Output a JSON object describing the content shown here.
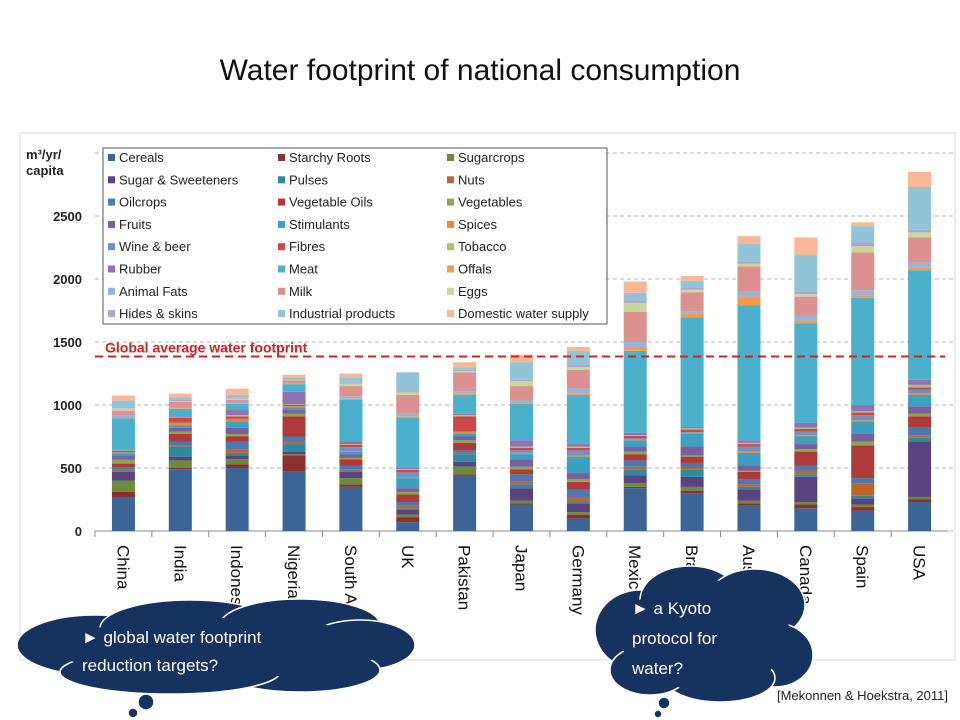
{
  "chart_data": {
    "type": "stacked_bar",
    "title": "Water footprint of national consumption",
    "y_label": "m³/yr/ capita",
    "categories": [
      "China",
      "India",
      "Indonesia",
      "Nigeria",
      "South Africa",
      "UK",
      "Pakistan",
      "Japan",
      "Germany",
      "Mexico",
      "Brazil",
      "Australia",
      "Canada",
      "Spain",
      "USA"
    ],
    "ylim": [
      0,
      3000
    ],
    "yticks": [
      0,
      500,
      1000,
      1500,
      2000,
      2500
    ],
    "grid": true,
    "reference_line": {
      "label": "Global average water footprint",
      "value": 1385,
      "color": "#d42020"
    },
    "series": [
      {
        "name": "Cereals",
        "color": "#3c6496",
        "values": [
          270,
          490,
          500,
          470,
          350,
          70,
          440,
          210,
          100,
          340,
          300,
          200,
          180,
          160,
          230
        ]
      },
      {
        "name": "Starchy Roots",
        "color": "#8b2f2f",
        "values": [
          40,
          10,
          30,
          130,
          20,
          40,
          10,
          10,
          30,
          10,
          20,
          20,
          30,
          30,
          20
        ]
      },
      {
        "name": "Sugarcrops",
        "color": "#6d8a3a",
        "values": [
          90,
          60,
          40,
          10,
          50,
          20,
          60,
          20,
          20,
          30,
          30,
          20,
          20,
          20,
          20
        ]
      },
      {
        "name": "Sugar & Sweeteners",
        "color": "#5a4480",
        "values": [
          70,
          30,
          30,
          20,
          50,
          40,
          40,
          100,
          70,
          60,
          80,
          90,
          200,
          50,
          440
        ]
      },
      {
        "name": "Pulses",
        "color": "#2f8a9e",
        "values": [
          10,
          80,
          20,
          60,
          10,
          10,
          60,
          30,
          10,
          50,
          60,
          20,
          20,
          20,
          30
        ]
      },
      {
        "name": "Nuts",
        "color": "#c0652a",
        "values": [
          5,
          10,
          30,
          20,
          10,
          20,
          10,
          20,
          40,
          20,
          10,
          20,
          30,
          100,
          20
        ]
      },
      {
        "name": "Oilcrops",
        "color": "#4a78b0",
        "values": [
          20,
          30,
          60,
          40,
          30,
          30,
          20,
          60,
          60,
          50,
          40,
          40,
          40,
          40,
          60
        ]
      },
      {
        "name": "Vegetable Oils",
        "color": "#b03a3a",
        "values": [
          30,
          60,
          40,
          160,
          50,
          60,
          60,
          40,
          60,
          50,
          50,
          60,
          110,
          260,
          90
        ]
      },
      {
        "name": "Vegetables",
        "color": "#8aa84a",
        "values": [
          30,
          20,
          20,
          20,
          10,
          20,
          20,
          20,
          20,
          20,
          10,
          10,
          20,
          30,
          20
        ]
      },
      {
        "name": "Fruits",
        "color": "#7a5ea0",
        "values": [
          30,
          30,
          50,
          30,
          30,
          30,
          30,
          60,
          50,
          40,
          70,
          40,
          40,
          60,
          60
        ]
      },
      {
        "name": "Stimulants",
        "color": "#3ea0c0",
        "values": [
          20,
          20,
          50,
          20,
          20,
          80,
          20,
          40,
          130,
          50,
          100,
          100,
          60,
          100,
          90
        ]
      },
      {
        "name": "Spices",
        "color": "#e38a3a",
        "values": [
          5,
          20,
          20,
          10,
          5,
          5,
          20,
          10,
          10,
          10,
          10,
          10,
          10,
          10,
          10
        ]
      },
      {
        "name": "Wine & beer",
        "color": "#6e92c8",
        "values": [
          5,
          0,
          0,
          0,
          30,
          40,
          0,
          20,
          40,
          5,
          5,
          40,
          30,
          40,
          30
        ]
      },
      {
        "name": "Fibres",
        "color": "#cc4a4a",
        "values": [
          10,
          40,
          20,
          10,
          20,
          20,
          120,
          20,
          20,
          20,
          20,
          20,
          20,
          20,
          20
        ]
      },
      {
        "name": "Tobacco",
        "color": "#a8c46a",
        "values": [
          5,
          5,
          10,
          5,
          5,
          5,
          10,
          10,
          10,
          5,
          10,
          10,
          10,
          10,
          20
        ]
      },
      {
        "name": "Rubber",
        "color": "#8e72b4",
        "values": [
          5,
          5,
          40,
          100,
          20,
          10,
          10,
          50,
          20,
          20,
          10,
          20,
          40,
          50,
          40
        ]
      },
      {
        "name": "Meat",
        "color": "#4ab0cc",
        "values": [
          250,
          60,
          50,
          60,
          330,
          400,
          150,
          290,
          390,
          650,
          870,
          1070,
          790,
          850,
          870
        ]
      },
      {
        "name": "Offals",
        "color": "#f49a4a",
        "values": [
          10,
          5,
          5,
          5,
          10,
          10,
          10,
          10,
          10,
          30,
          30,
          70,
          20,
          20,
          20
        ]
      },
      {
        "name": "Animal Fats",
        "color": "#94b4dc",
        "values": [
          10,
          5,
          5,
          5,
          20,
          20,
          20,
          20,
          40,
          40,
          20,
          40,
          40,
          40,
          40
        ]
      },
      {
        "name": "Milk",
        "color": "#dc9090",
        "values": [
          40,
          45,
          20,
          20,
          80,
          150,
          150,
          110,
          150,
          240,
          150,
          200,
          150,
          300,
          200
        ]
      },
      {
        "name": "Eggs",
        "color": "#c8d89a",
        "values": [
          15,
          5,
          10,
          5,
          20,
          20,
          10,
          40,
          20,
          70,
          20,
          20,
          20,
          50,
          40
        ]
      },
      {
        "name": "Hides & skins",
        "color": "#b4a4cc",
        "values": [
          5,
          10,
          5,
          10,
          10,
          10,
          10,
          10,
          20,
          20,
          20,
          20,
          20,
          30,
          20
        ]
      },
      {
        "name": "Industrial products",
        "color": "#92c4d8",
        "values": [
          60,
          20,
          25,
          10,
          40,
          150,
          20,
          140,
          110,
          60,
          50,
          140,
          290,
          130,
          340
        ]
      },
      {
        "name": "Domestic water supply",
        "color": "#f8b898",
        "values": [
          40,
          30,
          50,
          20,
          30,
          0,
          40,
          60,
          30,
          90,
          40,
          60,
          140,
          30,
          120
        ]
      }
    ]
  },
  "annotations": [
    [
      "► global water footprint",
      "reduction targets?"
    ],
    [
      "► a Kyoto",
      "protocol for",
      "water?"
    ]
  ],
  "source": "[Mekonnen & Hoekstra, 2011]"
}
